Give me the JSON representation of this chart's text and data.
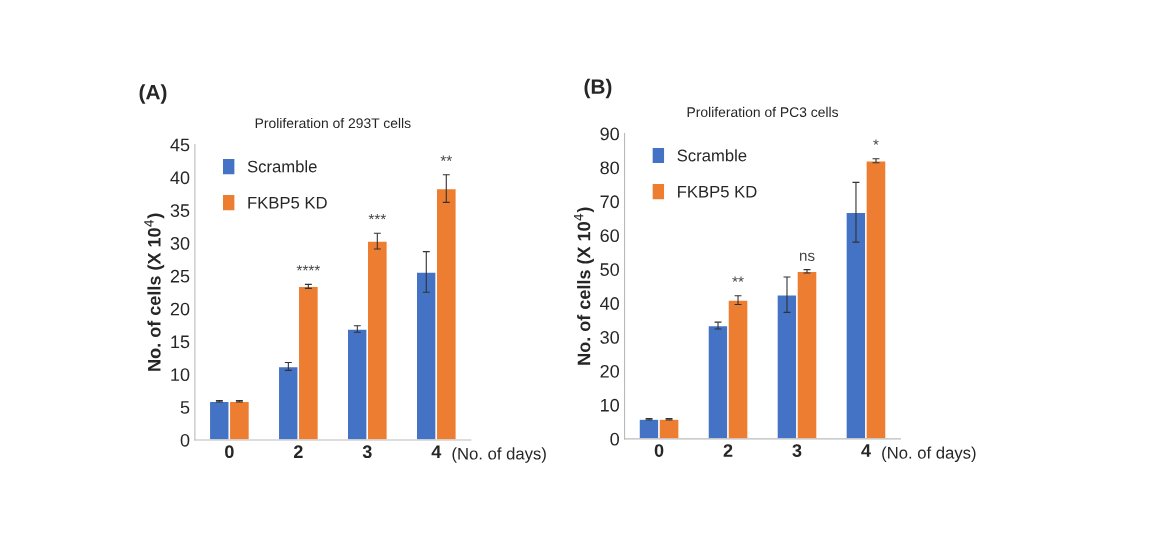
{
  "chart_data": [
    {
      "type": "bar",
      "title": "Proliferation of 293T cells",
      "xlabel": "(No. of days)",
      "ylabel": "No. of cells (X 10$^{4}$)",
      "categories": [
        "0",
        "2",
        "3",
        "4"
      ],
      "ylim": [
        0,
        45
      ],
      "yticks": [
        0,
        5,
        10,
        15,
        20,
        25,
        30,
        35,
        40,
        45
      ],
      "legend": "top left",
      "grid": false,
      "series": [
        {
          "name": "Scramble",
          "color": "#4472c4",
          "values": [
            5.9,
            11.2,
            16.9,
            25.6
          ],
          "errors": [
            0.1,
            0.6,
            0.5,
            3.1
          ]
        },
        {
          "name": "FKBP5 KD",
          "color": "#ed7d31",
          "values": [
            5.9,
            23.4,
            30.3,
            38.3
          ],
          "errors": [
            0.1,
            0.3,
            1.2,
            2.1
          ]
        }
      ],
      "annotations": [
        "(A)",
        "****",
        "***",
        "**"
      ]
    },
    {
      "type": "bar",
      "title": "Proliferation of PC3 cells",
      "xlabel": "(No. of days)",
      "ylabel": "No. of cells (X 10$^{4}$)",
      "categories": [
        "0",
        "2",
        "3",
        "4"
      ],
      "ylim": [
        0,
        90
      ],
      "yticks": [
        0,
        10,
        20,
        30,
        40,
        50,
        60,
        70,
        80,
        90
      ],
      "legend": "top left",
      "grid": false,
      "series": [
        {
          "name": "Scramble",
          "color": "#4472c4",
          "values": [
            5.8,
            33.4,
            42.5,
            66.8
          ],
          "errors": [
            0.2,
            1.0,
            5.2,
            8.8
          ]
        },
        {
          "name": "FKBP5 KD",
          "color": "#ed7d31",
          "values": [
            5.8,
            40.9,
            49.4,
            82.0
          ],
          "errors": [
            0.2,
            1.3,
            0.5,
            0.6
          ]
        }
      ],
      "annotations": [
        "(B)",
        "**",
        "ns",
        "*"
      ]
    }
  ]
}
